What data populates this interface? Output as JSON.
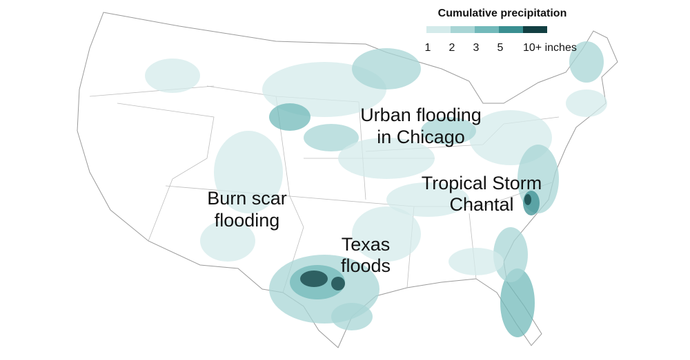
{
  "legend": {
    "title": "Cumulative precipitation",
    "bins": [
      {
        "label": "1",
        "color": "#d4ebeb"
      },
      {
        "label": "2",
        "color": "#a8d5d5"
      },
      {
        "label": "3",
        "color": "#72b9ba"
      },
      {
        "label": "5",
        "color": "#3a8f91"
      },
      {
        "label": "10+ inches",
        "color": "#123f42"
      }
    ]
  },
  "annotations": [
    {
      "lines": [
        "Urban flooding",
        "in Chicago"
      ]
    },
    {
      "lines": [
        "Tropical Storm",
        "Chantal"
      ]
    },
    {
      "lines": [
        "Burn scar",
        "flooding"
      ]
    },
    {
      "lines": [
        "Texas",
        "floods"
      ]
    }
  ]
}
